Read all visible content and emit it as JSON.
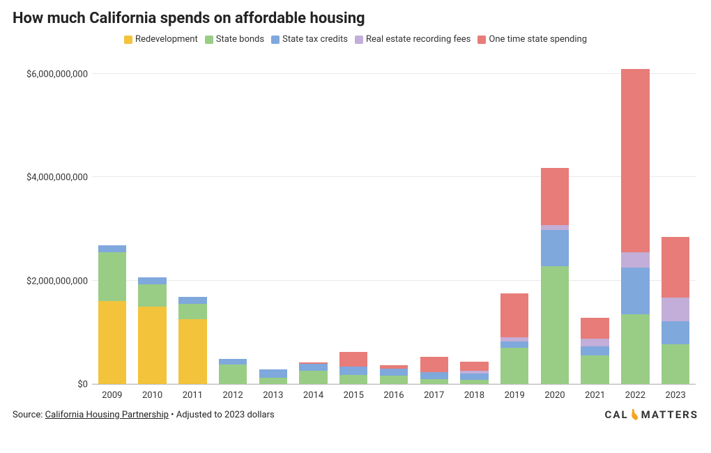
{
  "title": "How much California spends on affordable housing",
  "chart": {
    "type": "stacked-bar",
    "background_color": "#ffffff",
    "grid_color": "#e9e9e9",
    "axis_line_color": "#bdbdbd",
    "title_fontsize": 22,
    "label_fontsize": 13,
    "bar_width_ratio": 0.7,
    "y": {
      "min": 0,
      "max": 6500000000,
      "ticks": [
        0,
        2000000000,
        4000000000,
        6000000000
      ],
      "tick_labels": [
        "$0",
        "$2,000,000,000",
        "$4,000,000,000",
        "$6,000,000,000"
      ]
    },
    "series": [
      {
        "key": "redevelopment",
        "label": "Redevelopment",
        "color": "#f3c33b"
      },
      {
        "key": "state_bonds",
        "label": "State bonds",
        "color": "#99cd85"
      },
      {
        "key": "state_tax_credits",
        "label": "State tax credits",
        "color": "#7fa8dc"
      },
      {
        "key": "recording_fees",
        "label": "Real estate recording fees",
        "color": "#c2aed8"
      },
      {
        "key": "one_time",
        "label": "One time state spending",
        "color": "#e77c78"
      }
    ],
    "categories": [
      "2009",
      "2010",
      "2011",
      "2012",
      "2013",
      "2014",
      "2015",
      "2016",
      "2017",
      "2018",
      "2019",
      "2020",
      "2021",
      "2022",
      "2023"
    ],
    "data": [
      {
        "redevelopment": 1600000000,
        "state_bonds": 950000000,
        "state_tax_credits": 130000000,
        "recording_fees": 0,
        "one_time": 0
      },
      {
        "redevelopment": 1500000000,
        "state_bonds": 430000000,
        "state_tax_credits": 130000000,
        "recording_fees": 0,
        "one_time": 0
      },
      {
        "redevelopment": 1250000000,
        "state_bonds": 300000000,
        "state_tax_credits": 130000000,
        "recording_fees": 0,
        "one_time": 0
      },
      {
        "redevelopment": 0,
        "state_bonds": 380000000,
        "state_tax_credits": 110000000,
        "recording_fees": 0,
        "one_time": 0
      },
      {
        "redevelopment": 0,
        "state_bonds": 120000000,
        "state_tax_credits": 160000000,
        "recording_fees": 0,
        "one_time": 0
      },
      {
        "redevelopment": 0,
        "state_bonds": 260000000,
        "state_tax_credits": 130000000,
        "recording_fees": 0,
        "one_time": 30000000
      },
      {
        "redevelopment": 0,
        "state_bonds": 170000000,
        "state_tax_credits": 170000000,
        "recording_fees": 0,
        "one_time": 280000000
      },
      {
        "redevelopment": 0,
        "state_bonds": 160000000,
        "state_tax_credits": 140000000,
        "recording_fees": 0,
        "one_time": 70000000
      },
      {
        "redevelopment": 0,
        "state_bonds": 90000000,
        "state_tax_credits": 140000000,
        "recording_fees": 0,
        "one_time": 300000000
      },
      {
        "redevelopment": 0,
        "state_bonds": 80000000,
        "state_tax_credits": 120000000,
        "recording_fees": 50000000,
        "one_time": 180000000
      },
      {
        "redevelopment": 0,
        "state_bonds": 700000000,
        "state_tax_credits": 120000000,
        "recording_fees": 80000000,
        "one_time": 850000000
      },
      {
        "redevelopment": 0,
        "state_bonds": 2280000000,
        "state_tax_credits": 700000000,
        "recording_fees": 100000000,
        "one_time": 1100000000
      },
      {
        "redevelopment": 0,
        "state_bonds": 550000000,
        "state_tax_credits": 180000000,
        "recording_fees": 150000000,
        "one_time": 400000000
      },
      {
        "redevelopment": 0,
        "state_bonds": 1350000000,
        "state_tax_credits": 900000000,
        "recording_fees": 300000000,
        "one_time": 3550000000
      },
      {
        "redevelopment": 0,
        "state_bonds": 770000000,
        "state_tax_credits": 450000000,
        "recording_fees": 450000000,
        "one_time": 1180000000
      }
    ]
  },
  "footer": {
    "source_prefix": "Source: ",
    "source_link_text": "California Housing Partnership",
    "source_suffix": " • Adjusted to 2023 dollars",
    "brand_left": "CAL",
    "brand_right": "MATTERS",
    "brand_accent_color": "#f5a623"
  }
}
